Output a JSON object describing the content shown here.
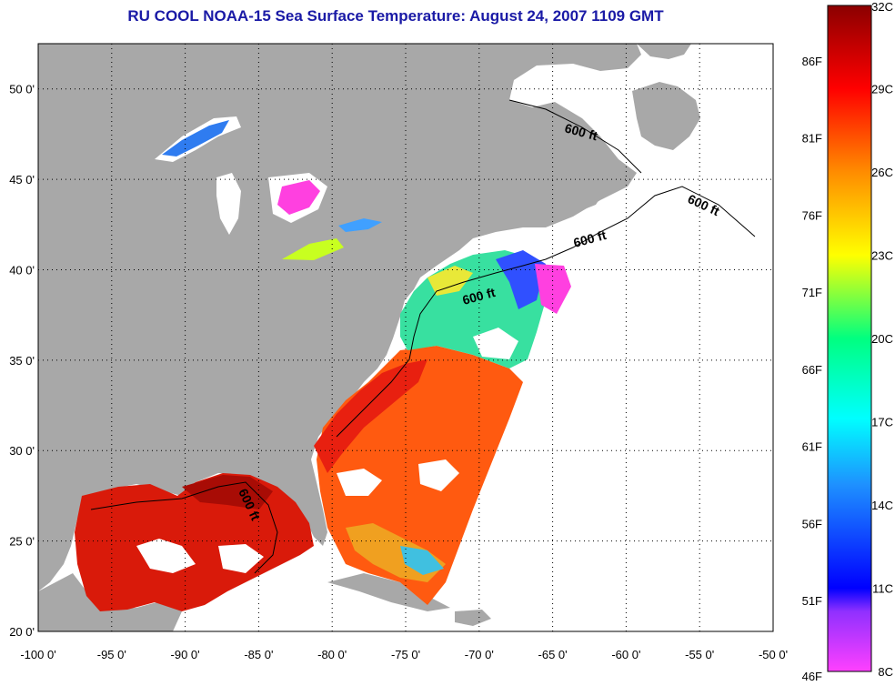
{
  "title": "RU COOL  NOAA-15  Sea Surface Temperature:  August 24, 2007 1109 GMT",
  "map": {
    "lon_range": [
      -100,
      -50
    ],
    "lat_range": [
      20,
      52.5
    ],
    "x_ticks": [
      "-100 0'",
      "-95 0'",
      "-90 0'",
      "-85 0'",
      "-80 0'",
      "-75 0'",
      "-70 0'",
      "-65 0'",
      "-60 0'",
      "-55 0'",
      "-50 0'"
    ],
    "y_ticks": [
      "50 0'",
      "45 0'",
      "40 0'",
      "35 0'",
      "30 0'",
      "25 0'",
      "20 0'"
    ],
    "contour_label": "600 ft",
    "colors": {
      "land": "#a8a8a8",
      "no_data": "#ffffff",
      "gulf": "#d91a0a",
      "atlantic_south": "#ff5a10",
      "shelf": "#38e0a0",
      "cold": "#3050ff"
    }
  },
  "legend": {
    "celsius_ticks": [
      "32C",
      "29C",
      "26C",
      "23C",
      "20C",
      "17C",
      "14C",
      "11C",
      "8C"
    ],
    "fahrenheit_ticks": [
      "86F",
      "81F",
      "76F",
      "71F",
      "66F",
      "61F",
      "56F",
      "51F",
      "46F"
    ],
    "colors": [
      "#8b0000",
      "#ff0000",
      "#ff8c00",
      "#ffff00",
      "#00ff80",
      "#00ffff",
      "#1e90ff",
      "#0000ff",
      "#8020ff",
      "#ff00ff"
    ]
  }
}
